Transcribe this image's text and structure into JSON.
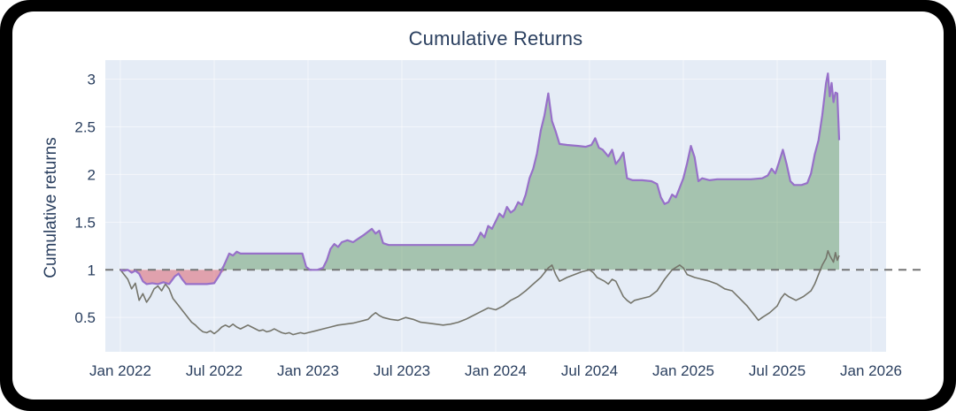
{
  "chart_data": {
    "type": "line",
    "title": "Cumulative Returns",
    "xlabel": "",
    "ylabel": "Cumulative returns",
    "legend": "none",
    "grid": true,
    "x_range": [
      2021.92,
      2026.08
    ],
    "y_range": [
      0.14,
      3.2
    ],
    "x_ticks": [
      {
        "value": 2022.0,
        "label": "Jan 2022"
      },
      {
        "value": 2022.5,
        "label": "Jul 2022"
      },
      {
        "value": 2023.0,
        "label": "Jan 2023"
      },
      {
        "value": 2023.5,
        "label": "Jul 2023"
      },
      {
        "value": 2024.0,
        "label": "Jan 2024"
      },
      {
        "value": 2024.5,
        "label": "Jul 2024"
      },
      {
        "value": 2025.0,
        "label": "Jan 2025"
      },
      {
        "value": 2025.5,
        "label": "Jul 2025"
      },
      {
        "value": 2026.0,
        "label": "Jan 2026"
      }
    ],
    "y_ticks": [
      {
        "value": 0.5,
        "label": "0.5"
      },
      {
        "value": 1,
        "label": "1"
      },
      {
        "value": 1.5,
        "label": "1.5"
      },
      {
        "value": 2,
        "label": "2"
      },
      {
        "value": 2.5,
        "label": "2.5"
      },
      {
        "value": 3,
        "label": "3"
      }
    ],
    "baseline": {
      "y": 1,
      "style": "dashed",
      "color": "#757575"
    },
    "colors": {
      "plot_bg": "#e5ecf6",
      "grid": "rgba(255,255,255,0.55)",
      "text": "#2a3f5f",
      "strategy_line": "#9770c9",
      "benchmark_line": "#75756b",
      "fill_above": "rgba(60,130,60,0.38)",
      "fill_below": "rgba(217,70,85,0.45)"
    },
    "series": [
      {
        "name": "strategy",
        "fill": "to_baseline",
        "points": [
          [
            2022.0,
            1.0
          ],
          [
            2022.02,
            0.99
          ],
          [
            2022.04,
            1.0
          ],
          [
            2022.06,
            0.97
          ],
          [
            2022.08,
            0.99
          ],
          [
            2022.1,
            0.96
          ],
          [
            2022.12,
            0.88
          ],
          [
            2022.14,
            0.85
          ],
          [
            2022.17,
            0.86
          ],
          [
            2022.2,
            0.85
          ],
          [
            2022.23,
            0.87
          ],
          [
            2022.26,
            0.85
          ],
          [
            2022.29,
            0.93
          ],
          [
            2022.31,
            0.96
          ],
          [
            2022.33,
            0.9
          ],
          [
            2022.35,
            0.85
          ],
          [
            2022.4,
            0.85
          ],
          [
            2022.46,
            0.85
          ],
          [
            2022.5,
            0.86
          ],
          [
            2022.53,
            0.95
          ],
          [
            2022.56,
            1.08
          ],
          [
            2022.58,
            1.17
          ],
          [
            2022.6,
            1.15
          ],
          [
            2022.62,
            1.19
          ],
          [
            2022.64,
            1.17
          ],
          [
            2022.72,
            1.17
          ],
          [
            2022.82,
            1.17
          ],
          [
            2022.92,
            1.17
          ],
          [
            2022.97,
            1.17
          ],
          [
            2022.99,
            1.03
          ],
          [
            2023.01,
            1.0
          ],
          [
            2023.05,
            1.0
          ],
          [
            2023.08,
            1.02
          ],
          [
            2023.1,
            1.1
          ],
          [
            2023.12,
            1.22
          ],
          [
            2023.14,
            1.27
          ],
          [
            2023.16,
            1.24
          ],
          [
            2023.18,
            1.29
          ],
          [
            2023.21,
            1.31
          ],
          [
            2023.24,
            1.29
          ],
          [
            2023.27,
            1.33
          ],
          [
            2023.3,
            1.37
          ],
          [
            2023.32,
            1.4
          ],
          [
            2023.34,
            1.43
          ],
          [
            2023.36,
            1.38
          ],
          [
            2023.38,
            1.41
          ],
          [
            2023.4,
            1.28
          ],
          [
            2023.43,
            1.26
          ],
          [
            2023.5,
            1.26
          ],
          [
            2023.6,
            1.26
          ],
          [
            2023.7,
            1.26
          ],
          [
            2023.8,
            1.26
          ],
          [
            2023.88,
            1.26
          ],
          [
            2023.9,
            1.31
          ],
          [
            2023.92,
            1.39
          ],
          [
            2023.94,
            1.34
          ],
          [
            2023.96,
            1.46
          ],
          [
            2023.98,
            1.43
          ],
          [
            2024.0,
            1.51
          ],
          [
            2024.02,
            1.59
          ],
          [
            2024.04,
            1.55
          ],
          [
            2024.06,
            1.66
          ],
          [
            2024.08,
            1.6
          ],
          [
            2024.1,
            1.63
          ],
          [
            2024.12,
            1.71
          ],
          [
            2024.14,
            1.68
          ],
          [
            2024.16,
            1.79
          ],
          [
            2024.18,
            1.96
          ],
          [
            2024.2,
            2.06
          ],
          [
            2024.22,
            2.22
          ],
          [
            2024.24,
            2.46
          ],
          [
            2024.26,
            2.62
          ],
          [
            2024.28,
            2.85
          ],
          [
            2024.3,
            2.56
          ],
          [
            2024.32,
            2.45
          ],
          [
            2024.34,
            2.32
          ],
          [
            2024.38,
            2.31
          ],
          [
            2024.44,
            2.3
          ],
          [
            2024.48,
            2.29
          ],
          [
            2024.51,
            2.31
          ],
          [
            2024.53,
            2.38
          ],
          [
            2024.55,
            2.28
          ],
          [
            2024.57,
            2.26
          ],
          [
            2024.6,
            2.19
          ],
          [
            2024.62,
            2.26
          ],
          [
            2024.64,
            2.11
          ],
          [
            2024.66,
            2.16
          ],
          [
            2024.68,
            2.23
          ],
          [
            2024.7,
            1.96
          ],
          [
            2024.73,
            1.94
          ],
          [
            2024.78,
            1.94
          ],
          [
            2024.83,
            1.93
          ],
          [
            2024.86,
            1.9
          ],
          [
            2024.88,
            1.76
          ],
          [
            2024.9,
            1.69
          ],
          [
            2024.92,
            1.71
          ],
          [
            2024.94,
            1.79
          ],
          [
            2024.96,
            1.76
          ],
          [
            2024.98,
            1.86
          ],
          [
            2025.0,
            1.96
          ],
          [
            2025.02,
            2.12
          ],
          [
            2025.04,
            2.3
          ],
          [
            2025.06,
            2.18
          ],
          [
            2025.08,
            1.93
          ],
          [
            2025.1,
            1.96
          ],
          [
            2025.14,
            1.94
          ],
          [
            2025.18,
            1.95
          ],
          [
            2025.24,
            1.95
          ],
          [
            2025.3,
            1.95
          ],
          [
            2025.36,
            1.95
          ],
          [
            2025.42,
            1.96
          ],
          [
            2025.45,
            1.99
          ],
          [
            2025.47,
            2.06
          ],
          [
            2025.49,
            2.01
          ],
          [
            2025.51,
            2.13
          ],
          [
            2025.53,
            2.26
          ],
          [
            2025.55,
            2.11
          ],
          [
            2025.57,
            1.93
          ],
          [
            2025.59,
            1.89
          ],
          [
            2025.63,
            1.89
          ],
          [
            2025.66,
            1.91
          ],
          [
            2025.68,
            2.01
          ],
          [
            2025.7,
            2.21
          ],
          [
            2025.72,
            2.36
          ],
          [
            2025.74,
            2.62
          ],
          [
            2025.76,
            2.96
          ],
          [
            2025.77,
            3.06
          ],
          [
            2025.78,
            2.82
          ],
          [
            2025.79,
            2.96
          ],
          [
            2025.8,
            2.76
          ],
          [
            2025.81,
            2.86
          ],
          [
            2025.82,
            2.85
          ],
          [
            2025.83,
            2.36
          ]
        ]
      },
      {
        "name": "benchmark",
        "fill": "none",
        "points": [
          [
            2022.0,
            1.0
          ],
          [
            2022.02,
            0.95
          ],
          [
            2022.04,
            0.9
          ],
          [
            2022.06,
            0.8
          ],
          [
            2022.08,
            0.86
          ],
          [
            2022.1,
            0.68
          ],
          [
            2022.12,
            0.75
          ],
          [
            2022.14,
            0.66
          ],
          [
            2022.16,
            0.72
          ],
          [
            2022.18,
            0.8
          ],
          [
            2022.2,
            0.83
          ],
          [
            2022.22,
            0.78
          ],
          [
            2022.24,
            0.85
          ],
          [
            2022.26,
            0.8
          ],
          [
            2022.28,
            0.7
          ],
          [
            2022.3,
            0.65
          ],
          [
            2022.32,
            0.6
          ],
          [
            2022.34,
            0.55
          ],
          [
            2022.36,
            0.5
          ],
          [
            2022.38,
            0.45
          ],
          [
            2022.4,
            0.42
          ],
          [
            2022.42,
            0.38
          ],
          [
            2022.44,
            0.35
          ],
          [
            2022.46,
            0.34
          ],
          [
            2022.48,
            0.36
          ],
          [
            2022.5,
            0.33
          ],
          [
            2022.52,
            0.36
          ],
          [
            2022.54,
            0.4
          ],
          [
            2022.56,
            0.42
          ],
          [
            2022.58,
            0.4
          ],
          [
            2022.6,
            0.43
          ],
          [
            2022.62,
            0.4
          ],
          [
            2022.64,
            0.38
          ],
          [
            2022.66,
            0.4
          ],
          [
            2022.68,
            0.42
          ],
          [
            2022.7,
            0.4
          ],
          [
            2022.72,
            0.38
          ],
          [
            2022.74,
            0.36
          ],
          [
            2022.76,
            0.37
          ],
          [
            2022.78,
            0.35
          ],
          [
            2022.8,
            0.36
          ],
          [
            2022.82,
            0.38
          ],
          [
            2022.84,
            0.36
          ],
          [
            2022.86,
            0.34
          ],
          [
            2022.88,
            0.33
          ],
          [
            2022.9,
            0.34
          ],
          [
            2022.92,
            0.32
          ],
          [
            2022.94,
            0.33
          ],
          [
            2022.96,
            0.34
          ],
          [
            2022.98,
            0.33
          ],
          [
            2023.0,
            0.34
          ],
          [
            2023.04,
            0.36
          ],
          [
            2023.08,
            0.38
          ],
          [
            2023.12,
            0.4
          ],
          [
            2023.16,
            0.42
          ],
          [
            2023.2,
            0.43
          ],
          [
            2023.24,
            0.44
          ],
          [
            2023.28,
            0.46
          ],
          [
            2023.32,
            0.48
          ],
          [
            2023.34,
            0.52
          ],
          [
            2023.36,
            0.55
          ],
          [
            2023.38,
            0.52
          ],
          [
            2023.4,
            0.5
          ],
          [
            2023.44,
            0.48
          ],
          [
            2023.48,
            0.47
          ],
          [
            2023.52,
            0.5
          ],
          [
            2023.56,
            0.48
          ],
          [
            2023.6,
            0.45
          ],
          [
            2023.64,
            0.44
          ],
          [
            2023.68,
            0.43
          ],
          [
            2023.72,
            0.42
          ],
          [
            2023.76,
            0.43
          ],
          [
            2023.8,
            0.45
          ],
          [
            2023.84,
            0.48
          ],
          [
            2023.88,
            0.52
          ],
          [
            2023.92,
            0.56
          ],
          [
            2023.96,
            0.6
          ],
          [
            2024.0,
            0.58
          ],
          [
            2024.04,
            0.62
          ],
          [
            2024.08,
            0.68
          ],
          [
            2024.12,
            0.72
          ],
          [
            2024.16,
            0.78
          ],
          [
            2024.2,
            0.85
          ],
          [
            2024.24,
            0.92
          ],
          [
            2024.28,
            1.02
          ],
          [
            2024.3,
            1.05
          ],
          [
            2024.32,
            0.95
          ],
          [
            2024.34,
            0.88
          ],
          [
            2024.38,
            0.92
          ],
          [
            2024.42,
            0.95
          ],
          [
            2024.46,
            0.98
          ],
          [
            2024.5,
            1.0
          ],
          [
            2024.52,
            0.97
          ],
          [
            2024.54,
            0.92
          ],
          [
            2024.58,
            0.88
          ],
          [
            2024.6,
            0.85
          ],
          [
            2024.62,
            0.9
          ],
          [
            2024.64,
            0.88
          ],
          [
            2024.66,
            0.8
          ],
          [
            2024.68,
            0.72
          ],
          [
            2024.7,
            0.68
          ],
          [
            2024.72,
            0.65
          ],
          [
            2024.74,
            0.68
          ],
          [
            2024.78,
            0.7
          ],
          [
            2024.82,
            0.72
          ],
          [
            2024.86,
            0.78
          ],
          [
            2024.9,
            0.9
          ],
          [
            2024.94,
            1.0
          ],
          [
            2024.98,
            1.05
          ],
          [
            2025.0,
            1.02
          ],
          [
            2025.02,
            0.95
          ],
          [
            2025.06,
            0.92
          ],
          [
            2025.1,
            0.9
          ],
          [
            2025.14,
            0.88
          ],
          [
            2025.18,
            0.85
          ],
          [
            2025.22,
            0.8
          ],
          [
            2025.26,
            0.78
          ],
          [
            2025.3,
            0.7
          ],
          [
            2025.34,
            0.62
          ],
          [
            2025.38,
            0.52
          ],
          [
            2025.4,
            0.47
          ],
          [
            2025.42,
            0.5
          ],
          [
            2025.46,
            0.55
          ],
          [
            2025.5,
            0.62
          ],
          [
            2025.52,
            0.7
          ],
          [
            2025.54,
            0.75
          ],
          [
            2025.56,
            0.72
          ],
          [
            2025.6,
            0.68
          ],
          [
            2025.64,
            0.72
          ],
          [
            2025.68,
            0.78
          ],
          [
            2025.7,
            0.85
          ],
          [
            2025.72,
            0.95
          ],
          [
            2025.74,
            1.05
          ],
          [
            2025.76,
            1.12
          ],
          [
            2025.77,
            1.2
          ],
          [
            2025.78,
            1.15
          ],
          [
            2025.8,
            1.08
          ],
          [
            2025.81,
            1.18
          ],
          [
            2025.82,
            1.1
          ],
          [
            2025.83,
            1.15
          ]
        ]
      }
    ]
  }
}
